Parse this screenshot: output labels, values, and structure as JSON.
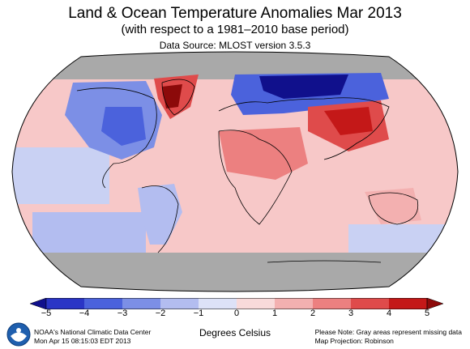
{
  "header": {
    "title": "Land & Ocean Temperature Anomalies Mar 2013",
    "subtitle": "(with respect to a 1981–2010 base period)",
    "source": "Data Source: MLOST version 3.5.3"
  },
  "map": {
    "projection": "Robinson",
    "missing_color": "#a9a9a9",
    "ocean_base_color": "#f7c8c8",
    "regions": [
      {
        "name": "north-america-cold",
        "level": -3
      },
      {
        "name": "greenland-warm",
        "level": 4
      },
      {
        "name": "europe-russia-cold",
        "level": -4
      },
      {
        "name": "central-asia-warm",
        "level": 4
      },
      {
        "name": "north-africa-warm",
        "level": 2
      },
      {
        "name": "arctic-missing",
        "level": null
      },
      {
        "name": "antarctica-missing",
        "level": null
      }
    ]
  },
  "colorbar": {
    "ticks": [
      "−5",
      "−4",
      "−3",
      "−2",
      "−1",
      "0",
      "1",
      "2",
      "3",
      "4",
      "5"
    ],
    "colors": [
      "#10108c",
      "#2a35c6",
      "#4b62dc",
      "#7c8fe6",
      "#b3bdf0",
      "#dde2f7",
      "#f8dada",
      "#f3b0b0",
      "#ec8080",
      "#df4b4b",
      "#c41818",
      "#8c0a0a"
    ],
    "units": "Degrees Celsius"
  },
  "footer": {
    "org_line1": "NOAA's National Climatic Data Center",
    "org_line2": "Mon Apr 15 08:15:03 EDT 2013",
    "note_line1": "Please Note: Gray areas represent missing data",
    "note_line2": "Map Projection: Robinson"
  },
  "logo": {
    "text": "NOAA",
    "icon": "noaa-logo-icon"
  }
}
